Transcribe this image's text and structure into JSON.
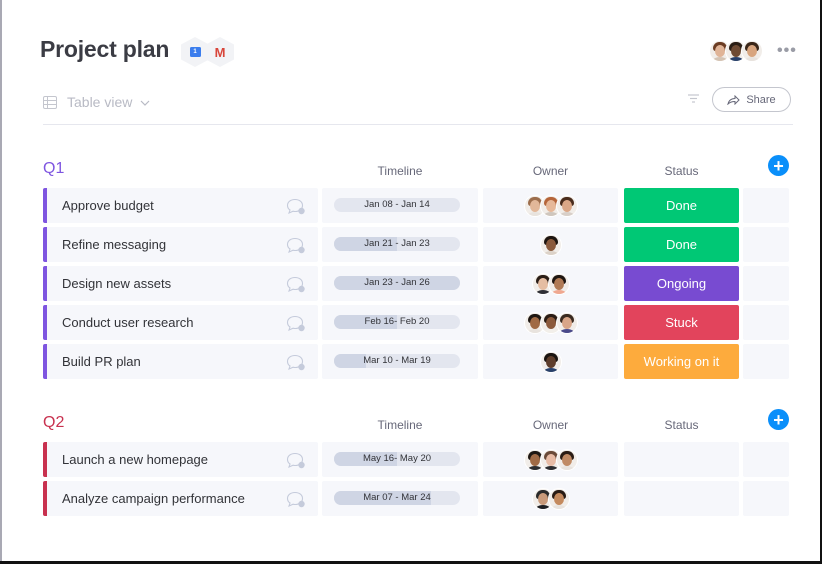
{
  "header": {
    "title": "Project plan",
    "integrations": [
      {
        "name": "google-calendar-icon",
        "glyph": "1"
      },
      {
        "name": "gmail-icon",
        "glyph": "M"
      }
    ],
    "view": {
      "label": "Table view",
      "icon": "table-icon"
    },
    "more_label": "•••",
    "share_label": "Share",
    "members": [
      {
        "skin": "#e0b497",
        "hair": "#6b3c22",
        "shirt": "#d4c3b3"
      },
      {
        "skin": "#6e4a33",
        "hair": "#2a1d14",
        "shirt": "#28406a"
      },
      {
        "skin": "#d8a57f",
        "hair": "#3a2618",
        "shirt": "#e8e3de"
      }
    ]
  },
  "columns": {
    "timeline": "Timeline",
    "owner": "Owner",
    "status": "Status"
  },
  "colors": {
    "q1_accent": "#7e55e0",
    "q2_accent": "#c8314f",
    "add_button": "#0a8ffa",
    "done": "#00c875",
    "ongoing": "#784bd1",
    "stuck": "#e2445c",
    "working": "#fdab3d"
  },
  "groups": [
    {
      "title": "Q1",
      "rows": [
        {
          "name": "Approve budget",
          "timeline": "Jan 08 - Jan 14",
          "progress": 0,
          "status": "Done",
          "status_key": "done"
        },
        {
          "name": "Refine messaging",
          "timeline": "Jan 21 - Jan 23",
          "progress": 50,
          "status": "Done",
          "status_key": "done"
        },
        {
          "name": "Design new assets",
          "timeline": "Jan 23 - Jan 26",
          "progress": 100,
          "status": "Ongoing",
          "status_key": "ongoing"
        },
        {
          "name": "Conduct user research",
          "timeline": "Feb 16- Feb 20",
          "progress": 50,
          "status": "Stuck",
          "status_key": "stuck"
        },
        {
          "name": "Build PR plan",
          "timeline": "Mar 10 - Mar 19",
          "progress": 25,
          "status": "Working on it",
          "status_key": "working"
        }
      ]
    },
    {
      "title": "Q2",
      "rows": [
        {
          "name": "Launch a new homepage",
          "timeline": "May 16- May 20",
          "progress": 50,
          "status": "",
          "status_key": "empty"
        },
        {
          "name": "Analyze campaign performance",
          "timeline": "Mar 07 - Mar 24",
          "progress": 77,
          "status": "",
          "status_key": "empty"
        }
      ]
    }
  ]
}
